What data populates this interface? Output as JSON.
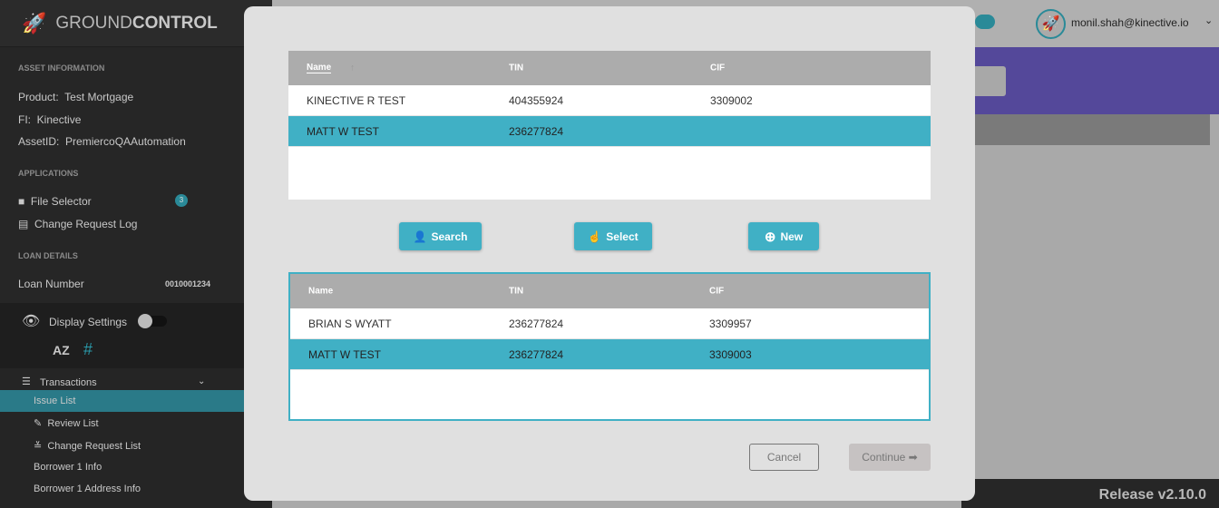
{
  "app": {
    "logo_light": "GROUND",
    "logo_bold": "CONTROL",
    "release": "Release v2.10.0"
  },
  "user": {
    "email": "monil.shah@kinective.io"
  },
  "sidebar": {
    "asset_header": "ASSET INFORMATION",
    "product_label": "Product:",
    "product": "Test Mortgage",
    "fi_label": "FI:",
    "fi": "Kinective",
    "asset_label": "AssetID:",
    "asset": "PremiercoQAAutomation",
    "apps_header": "APPLICATIONS",
    "file_selector": "File Selector",
    "file_selector_badge": "3",
    "change_log": "Change Request Log",
    "loan_header": "LOAN DETAILS",
    "loan_label": "Loan Number",
    "loan_number": "0010001234",
    "display_settings": "Display Settings",
    "sort_az": "AZ",
    "hash": "#",
    "transactions": "Transactions",
    "items": [
      "Issue List",
      "Review List",
      "Change Request List",
      "Borrower 1 Info",
      "Borrower 1 Address Info"
    ]
  },
  "modal": {
    "table1": {
      "columns": [
        "Name",
        "TIN",
        "CIF"
      ],
      "rows": [
        [
          "KINECTIVE R TEST",
          "404355924",
          "3309002"
        ],
        [
          "MATT W TEST",
          "236277824",
          ""
        ]
      ],
      "selected": 1
    },
    "buttons": {
      "search": "Search",
      "select": "Select",
      "new": "New"
    },
    "table2": {
      "columns": [
        "Name",
        "TIN",
        "CIF"
      ],
      "rows": [
        [
          "BRIAN S WYATT",
          "236277824",
          "3309957"
        ],
        [
          "MATT W TEST",
          "236277824",
          "3309003"
        ]
      ],
      "selected": 1
    },
    "cancel": "Cancel",
    "continue": "Continue"
  },
  "colors": {
    "accent": "#40b0c5",
    "sidebar": "#262626"
  }
}
